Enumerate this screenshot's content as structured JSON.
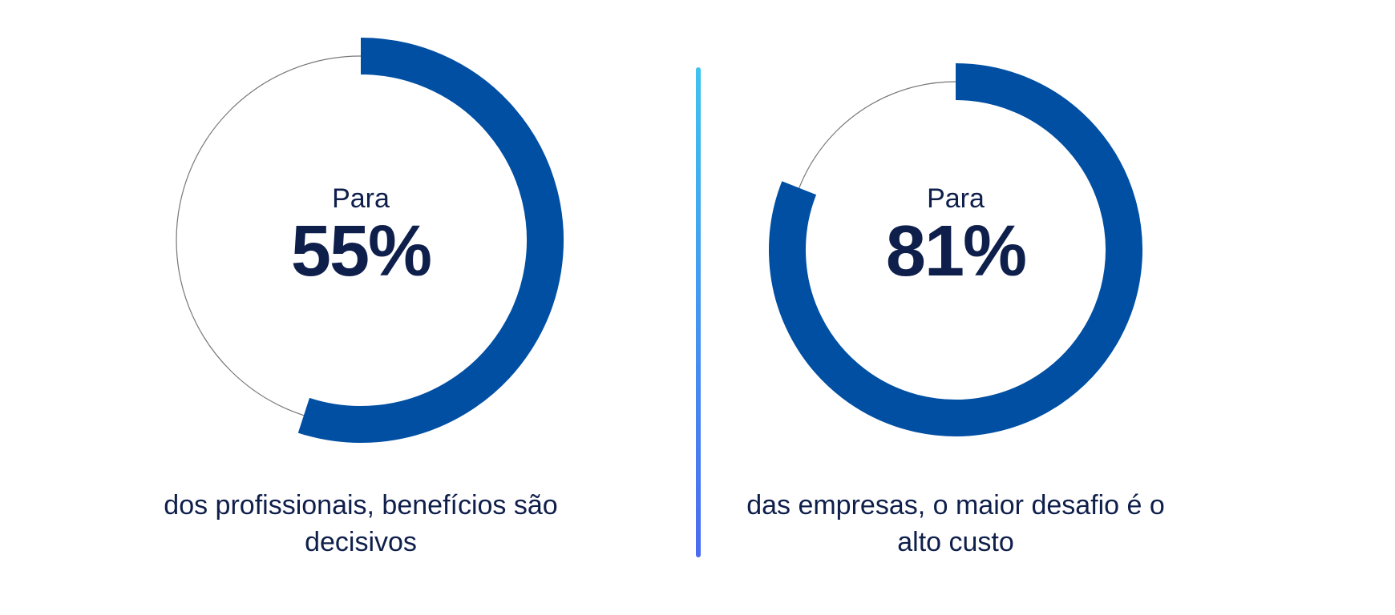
{
  "colors": {
    "arc": "#004fa3",
    "track": "#777777",
    "text": "#0f1f4b",
    "divider_top": "#3ec3ee",
    "divider_bottom": "#4b6af0"
  },
  "chart_data": [
    {
      "type": "pie",
      "style": "donut-progress",
      "value": 55,
      "unit": "%",
      "prefix": "Para",
      "display": "55%",
      "caption_line1": "dos profissionais, benefícios são",
      "caption_line2": "decisivos"
    },
    {
      "type": "pie",
      "style": "donut-progress",
      "value": 81,
      "unit": "%",
      "prefix": "Para",
      "display": "81%",
      "caption_line1": "das empresas, o maior desafio é o",
      "caption_line2": "alto custo"
    }
  ]
}
